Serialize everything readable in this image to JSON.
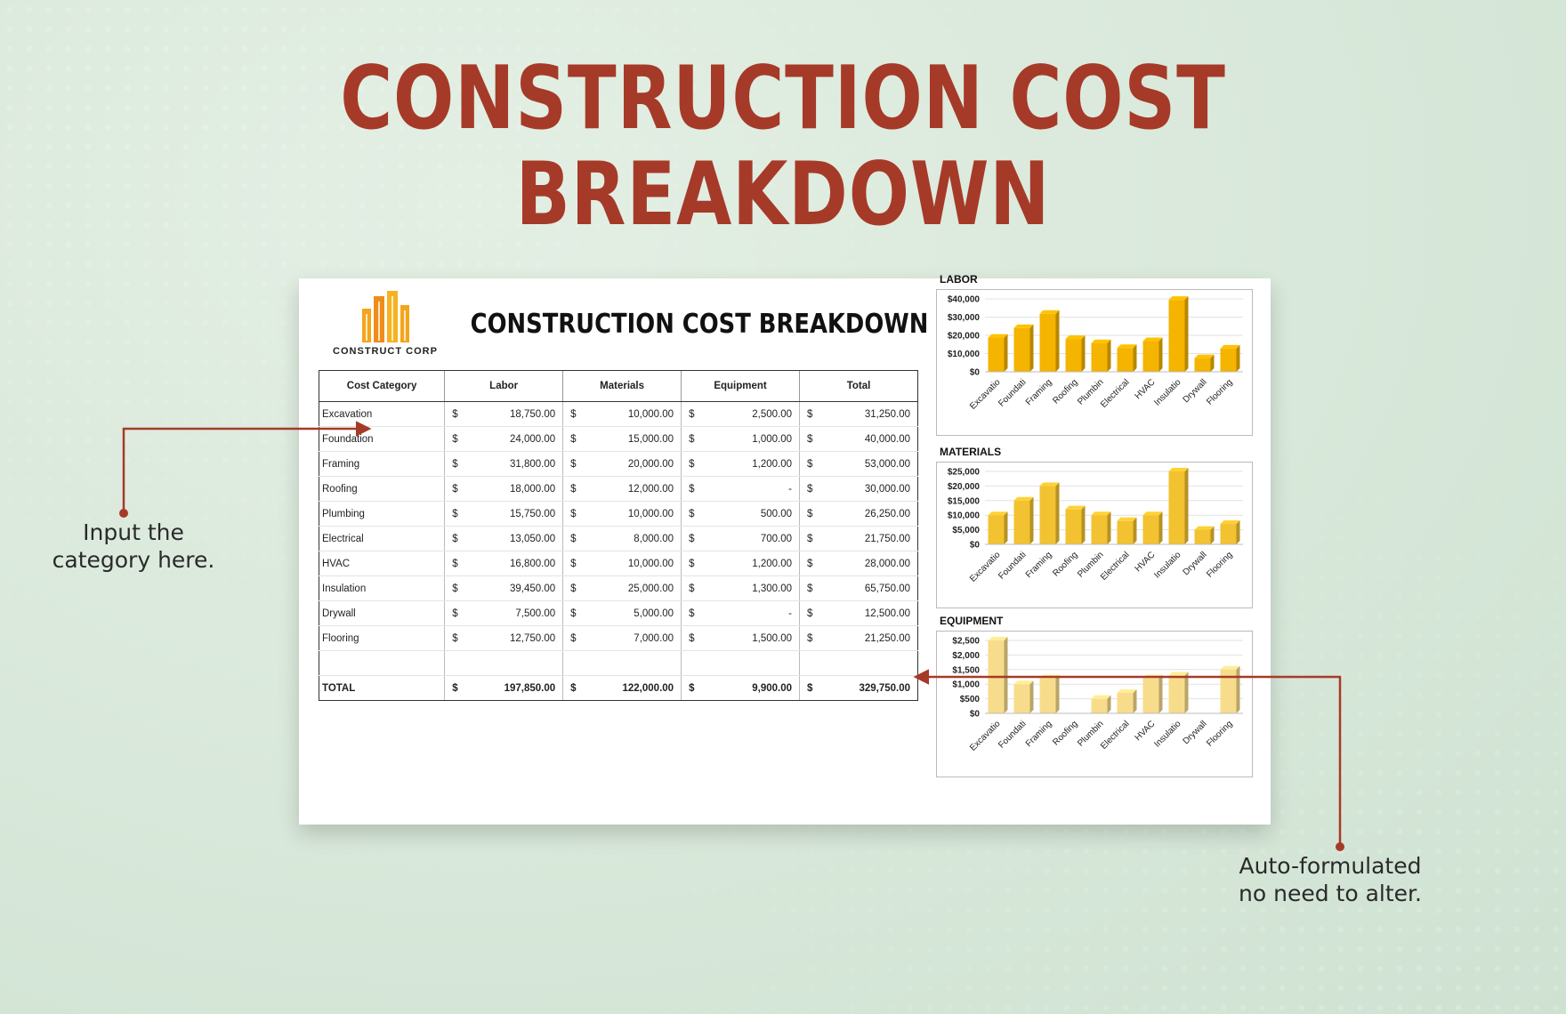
{
  "header": {
    "title": "CONSTRUCTION COST BREAKDOWN"
  },
  "sheet": {
    "logo_text": "CONSTRUCT CORP",
    "title": "CONSTRUCTION COST BREAKDOWN",
    "columns": [
      "Cost Category",
      "Labor",
      "Materials",
      "Equipment",
      "Total"
    ],
    "currency": "$",
    "rows": [
      {
        "category": "Excavation",
        "labor": "18,750.00",
        "materials": "10,000.00",
        "equipment": "2,500.00",
        "total": "31,250.00"
      },
      {
        "category": "Foundation",
        "labor": "24,000.00",
        "materials": "15,000.00",
        "equipment": "1,000.00",
        "total": "40,000.00"
      },
      {
        "category": "Framing",
        "labor": "31,800.00",
        "materials": "20,000.00",
        "equipment": "1,200.00",
        "total": "53,000.00"
      },
      {
        "category": "Roofing",
        "labor": "18,000.00",
        "materials": "12,000.00",
        "equipment": "-",
        "total": "30,000.00"
      },
      {
        "category": "Plumbing",
        "labor": "15,750.00",
        "materials": "10,000.00",
        "equipment": "500.00",
        "total": "26,250.00"
      },
      {
        "category": "Electrical",
        "labor": "13,050.00",
        "materials": "8,000.00",
        "equipment": "700.00",
        "total": "21,750.00"
      },
      {
        "category": "HVAC",
        "labor": "16,800.00",
        "materials": "10,000.00",
        "equipment": "1,200.00",
        "total": "28,000.00"
      },
      {
        "category": "Insulation",
        "labor": "39,450.00",
        "materials": "25,000.00",
        "equipment": "1,300.00",
        "total": "65,750.00"
      },
      {
        "category": "Drywall",
        "labor": "7,500.00",
        "materials": "5,000.00",
        "equipment": "-",
        "total": "12,500.00"
      },
      {
        "category": "Flooring",
        "labor": "12,750.00",
        "materials": "7,000.00",
        "equipment": "1,500.00",
        "total": "21,250.00"
      }
    ],
    "total_row": {
      "label": "TOTAL",
      "labor": "197,850.00",
      "materials": "122,000.00",
      "equipment": "9,900.00",
      "total": "329,750.00"
    }
  },
  "chart_data": [
    {
      "type": "bar",
      "title": "LABOR",
      "categories": [
        "Excavatio",
        "Foundati",
        "Framing",
        "Roofing",
        "Plumbin",
        "Electrical",
        "HVAC",
        "Insulatio",
        "Drywall",
        "Flooring"
      ],
      "values": [
        18750,
        24000,
        31800,
        18000,
        15750,
        13050,
        16800,
        39450,
        7500,
        12750
      ],
      "ylim": [
        0,
        40000
      ],
      "ticks": [
        {
          "v": 0,
          "label": "$0"
        },
        {
          "v": 10000,
          "label": "$10,000"
        },
        {
          "v": 20000,
          "label": "$20,000"
        },
        {
          "v": 30000,
          "label": "$30,000"
        },
        {
          "v": 40000,
          "label": "$40,000"
        }
      ],
      "color": "#f4b400",
      "grid": true
    },
    {
      "type": "bar",
      "title": "MATERIALS",
      "categories": [
        "Excavatio",
        "Foundati",
        "Framing",
        "Roofing",
        "Plumbin",
        "Electrical",
        "HVAC",
        "Insulatio",
        "Drywall",
        "Flooring"
      ],
      "values": [
        10000,
        15000,
        20000,
        12000,
        10000,
        8000,
        10000,
        25000,
        5000,
        7000
      ],
      "ylim": [
        0,
        25000
      ],
      "ticks": [
        {
          "v": 0,
          "label": "$0"
        },
        {
          "v": 5000,
          "label": "$5,000"
        },
        {
          "v": 10000,
          "label": "$10,000"
        },
        {
          "v": 15000,
          "label": "$15,000"
        },
        {
          "v": 20000,
          "label": "$20,000"
        },
        {
          "v": 25000,
          "label": "$25,000"
        }
      ],
      "color": "#f2c230",
      "grid": true
    },
    {
      "type": "bar",
      "title": "EQUIPMENT",
      "categories": [
        "Excavatio",
        "Foundati",
        "Framing",
        "Roofing",
        "Plumbin",
        "Electrical",
        "HVAC",
        "Insulatio",
        "Drywall",
        "Flooring"
      ],
      "values": [
        2500,
        1000,
        1200,
        0,
        500,
        700,
        1200,
        1300,
        0,
        1500
      ],
      "ylim": [
        0,
        2500
      ],
      "ticks": [
        {
          "v": 0,
          "label": "$0"
        },
        {
          "v": 500,
          "label": "$500"
        },
        {
          "v": 1000,
          "label": "$1,000"
        },
        {
          "v": 1500,
          "label": "$1,500"
        },
        {
          "v": 2000,
          "label": "$2,000"
        },
        {
          "v": 2500,
          "label": "$2,500"
        }
      ],
      "color": "#f7dc8c",
      "grid": true
    }
  ],
  "annotations": {
    "left": [
      "Input the",
      "category  here."
    ],
    "right": [
      "Auto-formulated",
      "no need to alter."
    ],
    "arrow_color": "#a63a28"
  }
}
